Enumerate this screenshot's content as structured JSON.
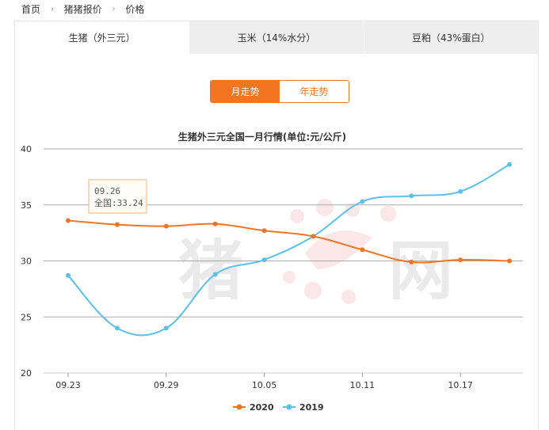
{
  "breadcrumb": {
    "home": "首页",
    "category": "猪猪报价",
    "current": "价格"
  },
  "tabs": [
    {
      "label": "生猪（外三元）"
    },
    {
      "label": "玉米（14%水分）"
    },
    {
      "label": "豆粕（43%蛋白）"
    }
  ],
  "period_toggle": {
    "month_label": "月走势",
    "year_label": "年走势"
  },
  "watermark": "猪网",
  "tooltip": {
    "date": "09.26",
    "label": "全国:33.24"
  },
  "colors": {
    "accent": "#f37421",
    "series_2020": "#f37421",
    "series_2019": "#5bc0eb"
  },
  "chart_data": {
    "type": "line",
    "title": "生猪外三元全国一月行情(单位:元/公斤)",
    "x": [
      "09.23",
      "09.26",
      "09.29",
      "10.02",
      "10.05",
      "10.08",
      "10.11",
      "10.14",
      "10.17",
      "10.20"
    ],
    "xticks": [
      "09.23",
      "09.29",
      "10.05",
      "10.11",
      "10.17"
    ],
    "ylim": [
      20,
      40
    ],
    "yticks": [
      20,
      25,
      30,
      35,
      40
    ],
    "grid": true,
    "legend_position": "bottom",
    "series": [
      {
        "name": "2020",
        "values": [
          33.6,
          33.24,
          33.1,
          33.3,
          32.7,
          32.2,
          31.0,
          29.9,
          30.1,
          30.0
        ]
      },
      {
        "name": "2019",
        "values": [
          28.7,
          24.0,
          24.0,
          28.8,
          30.1,
          32.2,
          35.3,
          35.8,
          36.2,
          38.6
        ]
      }
    ]
  }
}
